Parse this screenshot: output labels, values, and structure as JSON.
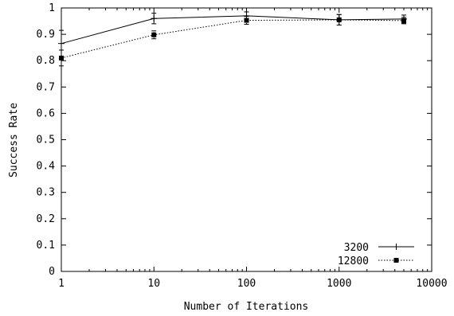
{
  "chart_data": {
    "type": "line",
    "xlabel": "Number of Iterations",
    "ylabel": "Success Rate",
    "xscale": "log",
    "xlim": [
      1,
      10000
    ],
    "ylim": [
      0,
      1
    ],
    "x_ticks": [
      {
        "value": 1,
        "label": "1"
      },
      {
        "value": 10,
        "label": "10"
      },
      {
        "value": 100,
        "label": "100"
      },
      {
        "value": 1000,
        "label": "1000"
      },
      {
        "value": 10000,
        "label": "10000"
      }
    ],
    "y_ticks": [
      {
        "value": 0,
        "label": "0"
      },
      {
        "value": 0.1,
        "label": "0.1"
      },
      {
        "value": 0.2,
        "label": "0.2"
      },
      {
        "value": 0.3,
        "label": "0.3"
      },
      {
        "value": 0.4,
        "label": "0.4"
      },
      {
        "value": 0.5,
        "label": "0.5"
      },
      {
        "value": 0.6,
        "label": "0.6"
      },
      {
        "value": 0.7,
        "label": "0.7"
      },
      {
        "value": 0.8,
        "label": "0.8"
      },
      {
        "value": 0.9,
        "label": "0.9"
      },
      {
        "value": 1,
        "label": "1"
      }
    ],
    "grid": false,
    "legend_position": "bottom-right",
    "series": [
      {
        "name": "3200",
        "line_style": "solid",
        "marker": "plus",
        "color": "#000000",
        "x": [
          1,
          10,
          100,
          1000,
          5000
        ],
        "y": [
          0.865,
          0.96,
          0.97,
          0.955,
          0.958
        ],
        "error": [
          0.05,
          0.02,
          0.015,
          0.02,
          0.015
        ]
      },
      {
        "name": "12800",
        "line_style": "dotted",
        "marker": "square",
        "color": "#000000",
        "x": [
          1,
          10,
          100,
          1000,
          5000
        ],
        "y": [
          0.81,
          0.898,
          0.953,
          0.955,
          0.952
        ],
        "error": [
          0.03,
          0.015,
          0.015,
          0.02,
          0.012
        ]
      }
    ]
  }
}
